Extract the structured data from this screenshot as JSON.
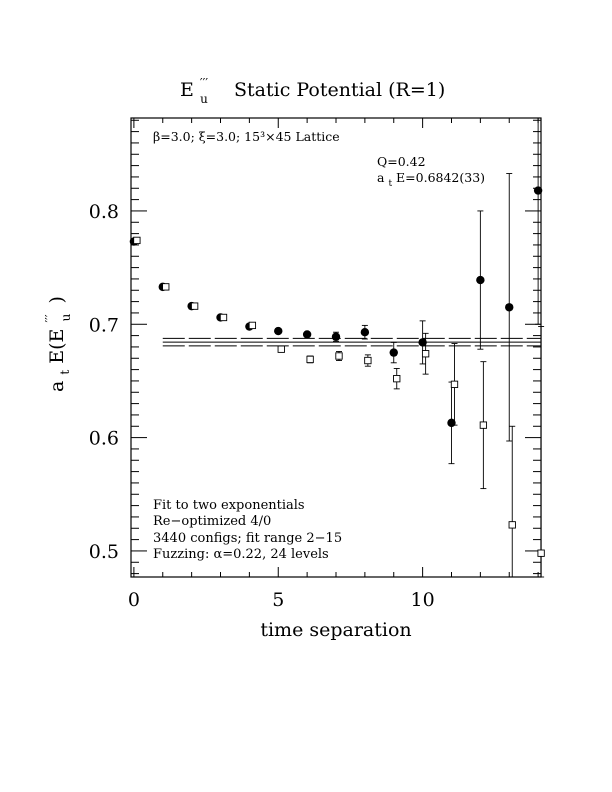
{
  "chart_data": {
    "type": "scatter",
    "title_main": "E",
    "title_sub": "u",
    "title_sup": "′′′",
    "title_rest": "  Static Potential (R=1)",
    "xlabel": "time separation",
    "ylabel_prefix": "a",
    "ylabel_prefix_sub": "t",
    "ylabel_body": "E(E",
    "ylabel_sup": "′′′",
    "ylabel_sub": "u",
    "ylabel_end": ")",
    "xlim": [
      -0.1,
      14.1
    ],
    "ylim": [
      0.477,
      0.882
    ],
    "x_ticks": [
      0,
      5,
      10
    ],
    "x_tick_labels": [
      "0",
      "5",
      "10"
    ],
    "y_ticks": [
      0.5,
      0.6,
      0.7,
      0.8
    ],
    "y_tick_labels": [
      "0.5",
      "0.6",
      "0.7",
      "0.8"
    ],
    "lattice_note": "β=3.0; ξ=3.0; 15³×45 Lattice",
    "fit_q": "Q=0.42",
    "fit_energy_prefix": "a",
    "fit_energy_sub": "t",
    "fit_energy_rest": "E=0.6842(33)",
    "notes": [
      "Fit to two exponentials",
      "Re−optimized 4/0",
      "3440 configs; fit range 2−15",
      "Fuzzing: α=0.22, 24 levels"
    ],
    "fit": {
      "value": 0.6842,
      "error": 0.0033,
      "x_start": 1.0,
      "x_end": 14.1
    },
    "series": [
      {
        "marker": "filled-circle",
        "points": [
          {
            "x": 0,
            "y": 0.773,
            "err": 0.002
          },
          {
            "x": 1,
            "y": 0.733,
            "err": 0.002
          },
          {
            "x": 2,
            "y": 0.716,
            "err": 0.002
          },
          {
            "x": 3,
            "y": 0.706,
            "err": 0.002
          },
          {
            "x": 4,
            "y": 0.698,
            "err": 0.002
          },
          {
            "x": 5,
            "y": 0.694,
            "err": 0.002
          },
          {
            "x": 6,
            "y": 0.691,
            "err": 0.002
          },
          {
            "x": 7,
            "y": 0.689,
            "err": 0.004
          },
          {
            "x": 8,
            "y": 0.693,
            "err": 0.006
          },
          {
            "x": 9,
            "y": 0.675,
            "err": 0.009
          },
          {
            "x": 10,
            "y": 0.684,
            "err": 0.019
          },
          {
            "x": 11,
            "y": 0.613,
            "err": 0.036
          },
          {
            "x": 12,
            "y": 0.739,
            "err": 0.061
          },
          {
            "x": 13,
            "y": 0.715,
            "err": 0.118
          },
          {
            "x": 14,
            "y": 0.818,
            "err": 0.118
          }
        ]
      },
      {
        "marker": "open-square",
        "points": [
          {
            "x": 0,
            "y": 0.774,
            "err": 0.002
          },
          {
            "x": 1,
            "y": 0.733,
            "err": 0.002
          },
          {
            "x": 2,
            "y": 0.716,
            "err": 0.002
          },
          {
            "x": 3,
            "y": 0.706,
            "err": 0.002
          },
          {
            "x": 4,
            "y": 0.699,
            "err": 0.002
          },
          {
            "x": 5,
            "y": 0.678,
            "err": 0.002
          },
          {
            "x": 6,
            "y": 0.669,
            "err": 0.003
          },
          {
            "x": 7,
            "y": 0.672,
            "err": 0.004
          },
          {
            "x": 8,
            "y": 0.668,
            "err": 0.005
          },
          {
            "x": 9,
            "y": 0.652,
            "err": 0.009
          },
          {
            "x": 10,
            "y": 0.674,
            "err": 0.018
          },
          {
            "x": 11,
            "y": 0.647,
            "err": 0.036
          },
          {
            "x": 12,
            "y": 0.611,
            "err": 0.056
          },
          {
            "x": 13,
            "y": 0.523,
            "err": 0.087
          },
          {
            "x": 14,
            "y": 0.498,
            "err": 0.2
          }
        ]
      }
    ]
  }
}
